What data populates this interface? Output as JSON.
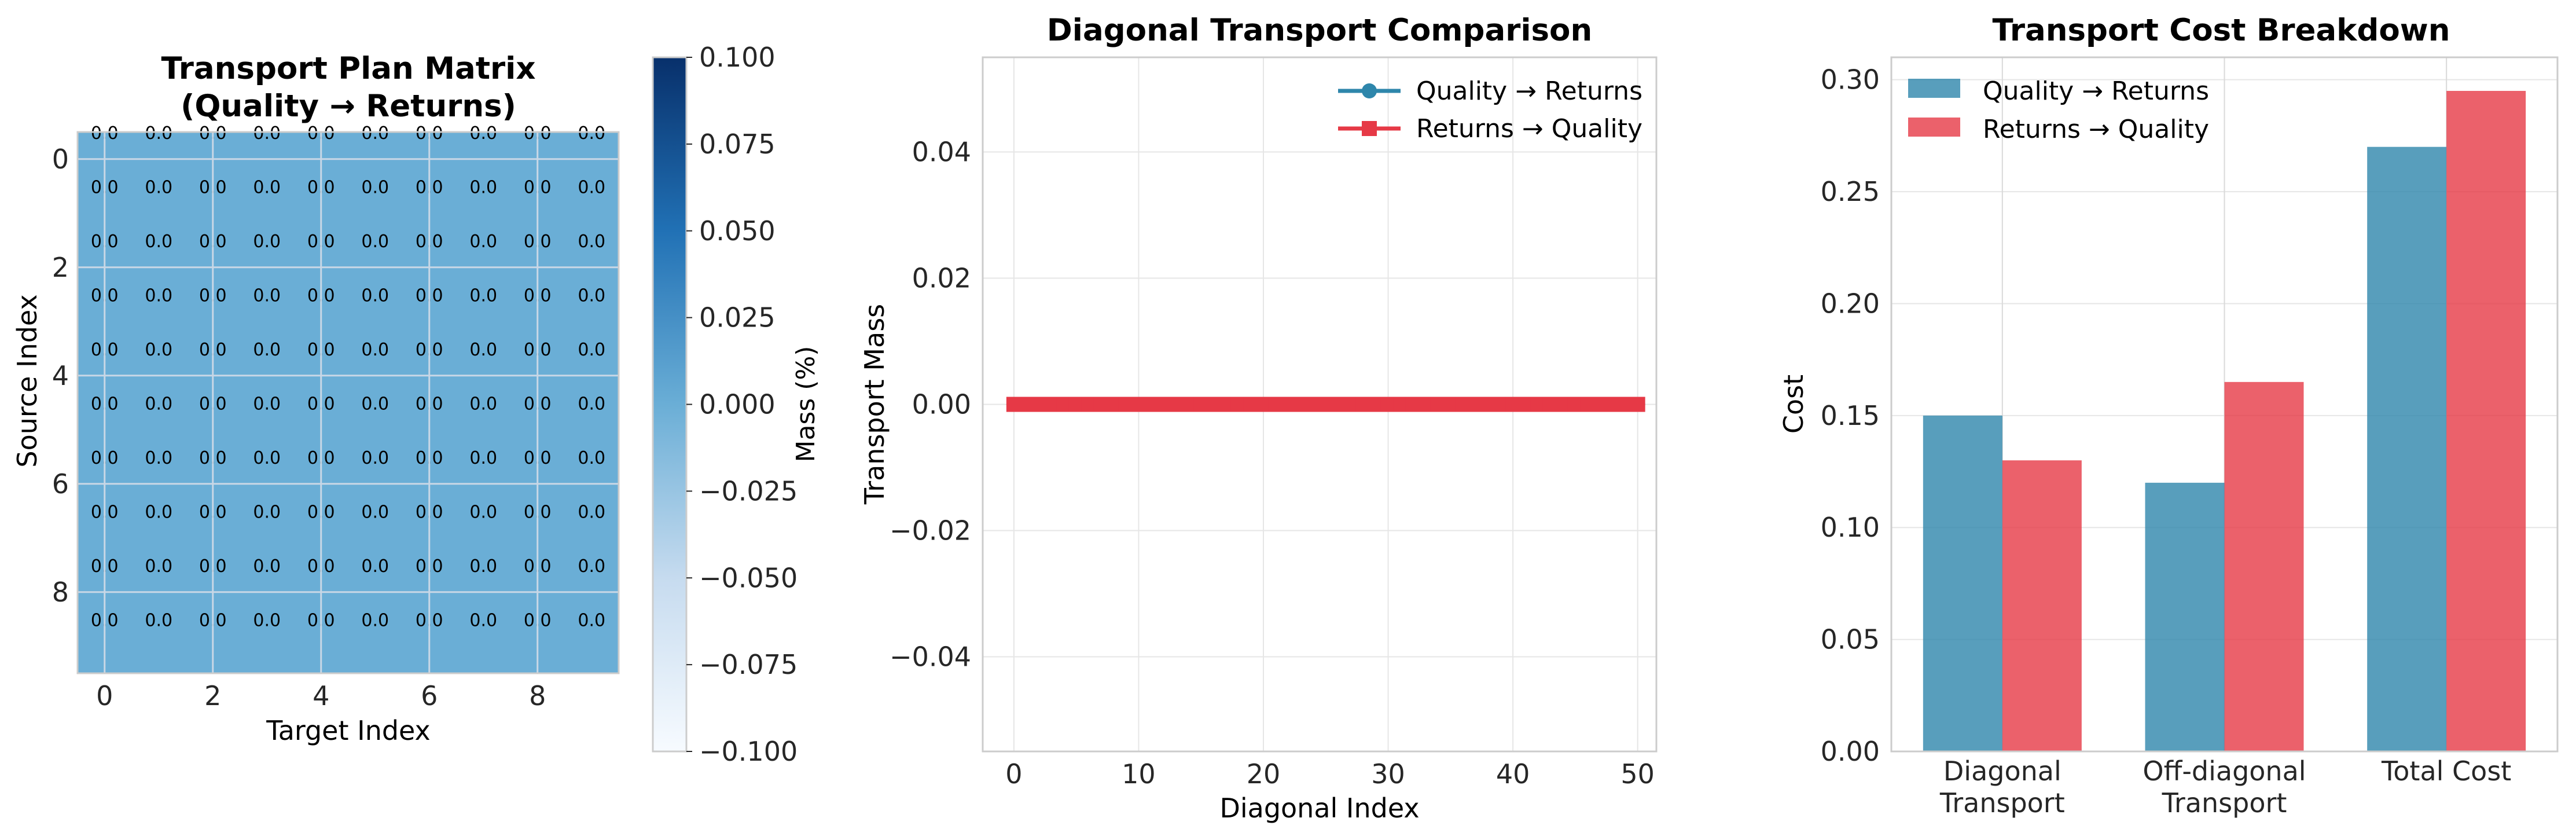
{
  "colors": {
    "quality_to_returns": "#2e86ab",
    "returns_to_quality": "#e63946",
    "heatmap_cell": "#6aaed6",
    "grid": "#e6e6e6",
    "spine": "#cccccc",
    "text": "#262626",
    "colorbar_low": "#f7fbff",
    "colorbar_high": "#08306b"
  },
  "chart_data": [
    {
      "type": "heatmap",
      "title_line1": "Transport Plan Matrix",
      "title_line2": "(Quality → Returns)",
      "xlabel": "Target Index",
      "ylabel": "Source Index",
      "x_ticks": [
        0,
        2,
        4,
        6,
        8
      ],
      "y_ticks": [
        0,
        2,
        4,
        6,
        8
      ],
      "rows": 10,
      "cols": 10,
      "values": [
        [
          0,
          0,
          0,
          0,
          0,
          0,
          0,
          0,
          0,
          0
        ],
        [
          0,
          0,
          0,
          0,
          0,
          0,
          0,
          0,
          0,
          0
        ],
        [
          0,
          0,
          0,
          0,
          0,
          0,
          0,
          0,
          0,
          0
        ],
        [
          0,
          0,
          0,
          0,
          0,
          0,
          0,
          0,
          0,
          0
        ],
        [
          0,
          0,
          0,
          0,
          0,
          0,
          0,
          0,
          0,
          0
        ],
        [
          0,
          0,
          0,
          0,
          0,
          0,
          0,
          0,
          0,
          0
        ],
        [
          0,
          0,
          0,
          0,
          0,
          0,
          0,
          0,
          0,
          0
        ],
        [
          0,
          0,
          0,
          0,
          0,
          0,
          0,
          0,
          0,
          0
        ],
        [
          0,
          0,
          0,
          0,
          0,
          0,
          0,
          0,
          0,
          0
        ],
        [
          0,
          0,
          0,
          0,
          0,
          0,
          0,
          0,
          0,
          0
        ]
      ],
      "cell_label": "0.0",
      "colorbar": {
        "label": "Mass (%)",
        "range": [
          -0.1,
          0.1
        ],
        "ticks": [
          "0.100",
          "0.075",
          "0.050",
          "0.025",
          "0.000",
          "−0.025",
          "−0.050",
          "−0.075",
          "−0.100"
        ],
        "tick_values": [
          0.1,
          0.075,
          0.05,
          0.025,
          0.0,
          -0.025,
          -0.05,
          -0.075,
          -0.1
        ]
      }
    },
    {
      "type": "line",
      "title": "Diagonal Transport Comparison",
      "xlabel": "Diagonal Index",
      "ylabel": "Transport Mass",
      "xlim": [
        -2.5,
        51.5
      ],
      "ylim": [
        -0.055,
        0.055
      ],
      "x_ticks": [
        0,
        10,
        20,
        30,
        40,
        50
      ],
      "y_ticks": [
        0.04,
        0.02,
        0.0,
        -0.02,
        -0.04
      ],
      "y_tick_labels": [
        "0.04",
        "0.02",
        "0.00",
        "−0.02",
        "−0.04"
      ],
      "x": {
        "start": 0,
        "end": 50,
        "step": 1
      },
      "series": [
        {
          "name": "Quality → Returns",
          "value": 0.0,
          "marker": "circle"
        },
        {
          "name": "Returns → Quality",
          "value": 0.0,
          "marker": "square"
        }
      ],
      "legend_position": "top-right",
      "grid": true
    },
    {
      "type": "bar",
      "title": "Transport Cost Breakdown",
      "xlabel": "",
      "ylabel": "Cost",
      "ylim": [
        0,
        0.31
      ],
      "y_ticks": [
        0.0,
        0.05,
        0.1,
        0.15,
        0.2,
        0.25,
        0.3
      ],
      "y_tick_labels": [
        "0.00",
        "0.05",
        "0.10",
        "0.15",
        "0.20",
        "0.25",
        "0.30"
      ],
      "categories": [
        [
          "Diagonal",
          "Transport"
        ],
        [
          "Off-diagonal",
          "Transport"
        ],
        [
          "Total Cost"
        ]
      ],
      "series": [
        {
          "name": "Quality → Returns",
          "values": [
            0.15,
            0.12,
            0.27
          ]
        },
        {
          "name": "Returns → Quality",
          "values": [
            0.13,
            0.165,
            0.295
          ]
        }
      ],
      "legend_position": "top-left",
      "grid": true
    }
  ]
}
